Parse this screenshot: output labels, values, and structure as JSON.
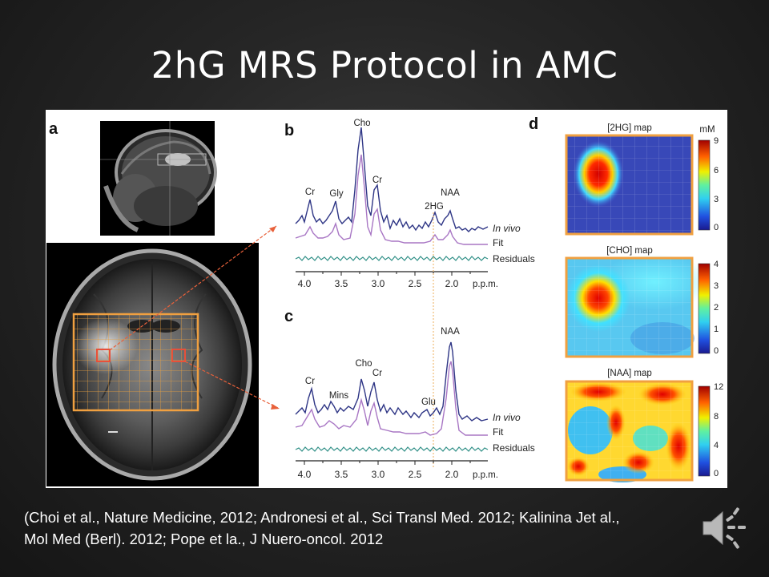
{
  "slide": {
    "title": "2hG MRS Protocol in AMC",
    "citation_line1": "(Choi et al., Nature Medicine, 2012; Andronesi et al., Sci Transl Med. 2012; Kalinina Jet al.,",
    "citation_line2": "Mol Med (Berl). 2012; Pope et la., J Nuero-oncol. 2012"
  },
  "figure": {
    "panel_a": "a",
    "panel_b": "b",
    "panel_c": "c",
    "panel_d": "d",
    "spectrum_b": {
      "peaks": {
        "cho": "Cho",
        "cr1": "Cr",
        "cr2": "Cr",
        "gly": "Gly",
        "naa": "NAA",
        "hg": "2HG"
      },
      "traces": {
        "invivo": "In vivo",
        "fit": "Fit",
        "residuals": "Residuals"
      },
      "axis": {
        "t1": "4.0",
        "t2": "3.5",
        "t3": "3.0",
        "t4": "2.5",
        "t5": "2.0",
        "unit": "p.p.m."
      }
    },
    "spectrum_c": {
      "peaks": {
        "cr1": "Cr",
        "mins": "Mins",
        "cho": "Cho",
        "cr2": "Cr",
        "glu": "Glu",
        "naa": "NAA"
      },
      "traces": {
        "invivo": "In vivo",
        "fit": "Fit",
        "residuals": "Residuals"
      },
      "axis": {
        "t1": "4.0",
        "t2": "3.5",
        "t3": "3.0",
        "t4": "2.5",
        "t5": "2.0",
        "unit": "p.p.m."
      }
    },
    "maps": {
      "hg": {
        "title": "[2HG] map",
        "unit": "mM",
        "ticks": [
          "9",
          "6",
          "3",
          "0"
        ]
      },
      "cho": {
        "title": "[CHO] map",
        "ticks": [
          "4",
          "3",
          "2",
          "1",
          "0"
        ]
      },
      "naa": {
        "title": "[NAA] map",
        "ticks": [
          "12",
          "8",
          "4",
          "0"
        ]
      }
    }
  },
  "colors": {
    "invivo": "#2e3585",
    "fit": "#a876c4",
    "residuals": "#2f8f86",
    "arrow": "#e8603a",
    "grid_box": "#f0a040"
  },
  "icons": {
    "speaker": "speaker-icon"
  }
}
